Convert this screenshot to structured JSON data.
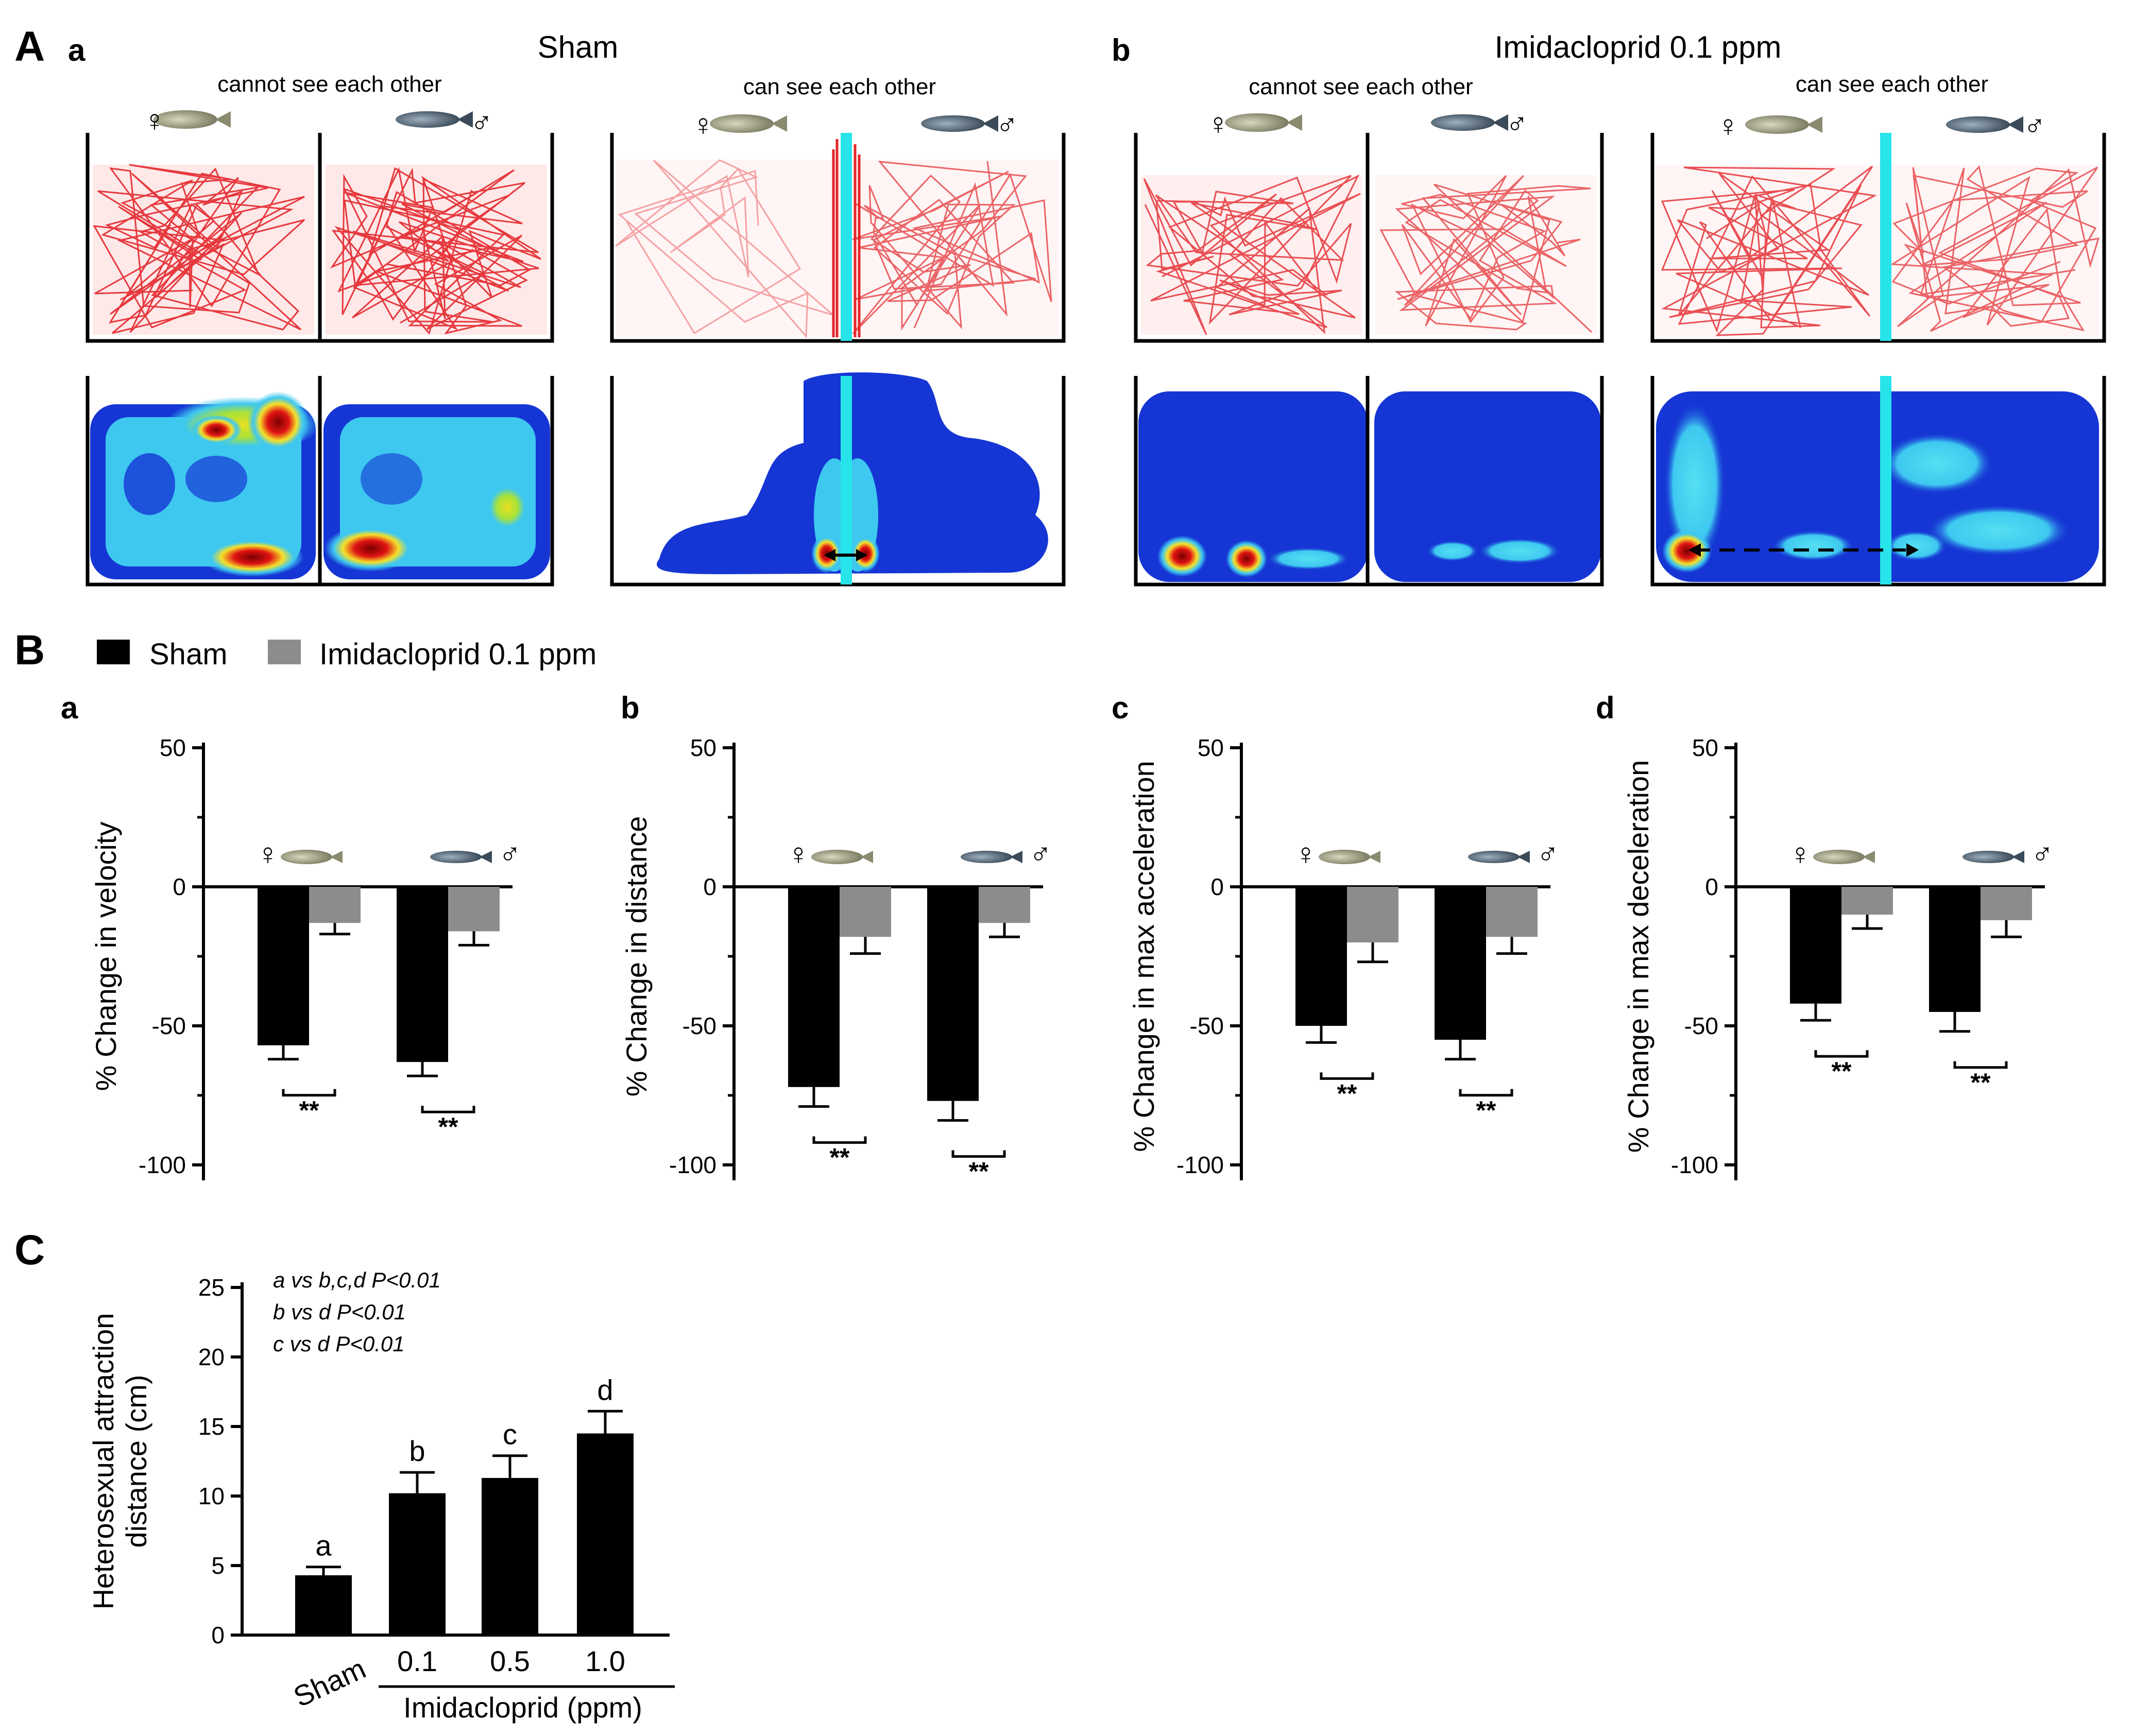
{
  "panel_labels": {
    "A": "A",
    "B": "B",
    "C": "C"
  },
  "panel_A": {
    "a": {
      "sublabel": "a",
      "group": "Sham",
      "conditions": [
        "cannot see each other",
        "can see each other"
      ]
    },
    "b": {
      "sublabel": "b",
      "group": "Imidacloprid  0.1 ppm",
      "conditions": [
        "cannot see each other",
        "can see each other"
      ]
    },
    "female_symbol": "♀",
    "male_symbol": "♂"
  },
  "colors": {
    "sham": "#000000",
    "imidacloprid": "#8c8c8c",
    "trace": "#e3262b",
    "divider": "#27e3ea",
    "heat_low": "#1536d4",
    "heat_mid": "#3ec8f0",
    "heat_high": "#f5e12a",
    "heat_peak": "#e01313"
  },
  "legend": {
    "sham": "Sham",
    "imidacloprid": "Imidacloprid  0.1 ppm"
  },
  "chart_data": [
    {
      "panel": "a",
      "type": "bar",
      "ylabel": "% Change in velocity",
      "ylim": [
        -100,
        50
      ],
      "yticks": [
        50,
        0,
        -50,
        -100
      ],
      "categories": [
        "female",
        "male"
      ],
      "series": [
        {
          "name": "Sham",
          "values": [
            -57,
            -63
          ],
          "errors": [
            5,
            5
          ]
        },
        {
          "name": "Imidacloprid 0.1 ppm",
          "values": [
            -13,
            -16
          ],
          "errors": [
            4,
            5
          ]
        }
      ],
      "significance": [
        "**",
        "**"
      ]
    },
    {
      "panel": "b",
      "type": "bar",
      "ylabel": "% Change in distance",
      "ylim": [
        -100,
        50
      ],
      "yticks": [
        50,
        0,
        -50,
        -100
      ],
      "categories": [
        "female",
        "male"
      ],
      "series": [
        {
          "name": "Sham",
          "values": [
            -72,
            -77
          ],
          "errors": [
            7,
            7
          ]
        },
        {
          "name": "Imidacloprid 0.1 ppm",
          "values": [
            -18,
            -13
          ],
          "errors": [
            6,
            5
          ]
        }
      ],
      "significance": [
        "**",
        "**"
      ]
    },
    {
      "panel": "c",
      "type": "bar",
      "ylabel": "% Change in max acceleration",
      "ylim": [
        -100,
        50
      ],
      "yticks": [
        50,
        0,
        -50,
        -100
      ],
      "categories": [
        "female",
        "male"
      ],
      "series": [
        {
          "name": "Sham",
          "values": [
            -50,
            -55
          ],
          "errors": [
            6,
            7
          ]
        },
        {
          "name": "Imidacloprid 0.1 ppm",
          "values": [
            -20,
            -18
          ],
          "errors": [
            7,
            6
          ]
        }
      ],
      "significance": [
        "**",
        "**"
      ]
    },
    {
      "panel": "d",
      "type": "bar",
      "ylabel": "% Change in max deceleration",
      "ylim": [
        -100,
        50
      ],
      "yticks": [
        50,
        0,
        -50,
        -100
      ],
      "categories": [
        "female",
        "male"
      ],
      "series": [
        {
          "name": "Sham",
          "values": [
            -42,
            -45
          ],
          "errors": [
            6,
            7
          ]
        },
        {
          "name": "Imidacloprid 0.1 ppm",
          "values": [
            -10,
            -12
          ],
          "errors": [
            5,
            6
          ]
        }
      ],
      "significance": [
        "**",
        "**"
      ]
    },
    {
      "panel": "C",
      "type": "bar",
      "ylabel": "Heterosexual attraction\ndistance (cm)",
      "xlabel": "Imidacloprid (ppm)",
      "ylim": [
        0,
        25
      ],
      "yticks": [
        0,
        5,
        10,
        15,
        20,
        25
      ],
      "categories": [
        "Sham",
        "0.1",
        "0.5",
        "1.0"
      ],
      "values": [
        4.3,
        10.2,
        11.3,
        14.5
      ],
      "errors": [
        0.6,
        1.5,
        1.6,
        1.6
      ],
      "letters": [
        "a",
        "b",
        "c",
        "d"
      ],
      "annotations": [
        "a vs b,c,d P<0.01",
        "b vs d P<0.01",
        "c vs d P<0.01"
      ]
    }
  ]
}
